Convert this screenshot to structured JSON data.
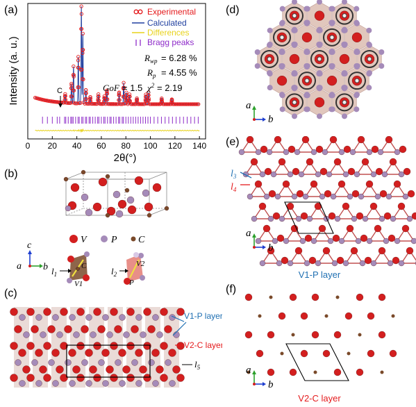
{
  "panels": {
    "a": "(a)",
    "b": "(b)",
    "c": "(c)",
    "d": "(d)",
    "e": "(e)",
    "f": "(f)"
  },
  "chart_data": {
    "type": "scatter",
    "xlabel": "2θ(°)",
    "ylabel": "Intensity (a. u.)",
    "xlim": [
      0,
      145
    ],
    "xticks": [
      0,
      20,
      40,
      60,
      80,
      100,
      120,
      140
    ],
    "legend": [
      {
        "name": "Experimental",
        "color": "#e41a1c",
        "marker": "open-circle"
      },
      {
        "name": "Calculated",
        "color": "#1f3f9f",
        "marker": "line"
      },
      {
        "name": "Differences",
        "color": "#e8d21a",
        "marker": "line"
      },
      {
        "name": "Bragg peaks",
        "color": "#8e2cc9",
        "marker": "tick"
      }
    ],
    "legend_position": "top-right",
    "annotation": "C",
    "peaks": [
      {
        "x": 30.5,
        "h": 0.09
      },
      {
        "x": 35.6,
        "h": 0.2
      },
      {
        "x": 37.3,
        "h": 0.38
      },
      {
        "x": 41.2,
        "h": 0.48
      },
      {
        "x": 43.7,
        "h": 1.0
      },
      {
        "x": 44.9,
        "h": 0.72
      },
      {
        "x": 47.4,
        "h": 0.14
      },
      {
        "x": 51.0,
        "h": 0.07
      },
      {
        "x": 57.6,
        "h": 0.1
      },
      {
        "x": 62.5,
        "h": 0.08
      },
      {
        "x": 64.6,
        "h": 0.14
      },
      {
        "x": 74.5,
        "h": 0.12
      },
      {
        "x": 78.2,
        "h": 0.22
      },
      {
        "x": 80.4,
        "h": 0.12
      },
      {
        "x": 83.0,
        "h": 0.1
      },
      {
        "x": 89.0,
        "h": 0.06
      },
      {
        "x": 96.3,
        "h": 0.1
      },
      {
        "x": 98.4,
        "h": 0.12
      },
      {
        "x": 109.2,
        "h": 0.06
      },
      {
        "x": 117.5,
        "h": 0.05
      }
    ],
    "bragg_positions": [
      12,
      16,
      20,
      24,
      26,
      30,
      31,
      33,
      35,
      36,
      37,
      39,
      41,
      42,
      44,
      45,
      47,
      48,
      50,
      51,
      53,
      55,
      57,
      58,
      60,
      62,
      63,
      65,
      67,
      68,
      70,
      72,
      74,
      75,
      77,
      78,
      80,
      82,
      84,
      86,
      88,
      90,
      92,
      94,
      96,
      98,
      100,
      103,
      106,
      109,
      112,
      115,
      118,
      121,
      124,
      127,
      130,
      133,
      136,
      139
    ]
  },
  "fit_stats": {
    "rwp": "= 6.28 %",
    "rp": "= 4.55 %",
    "gof": "= 1.5",
    "chi2": "= 2.19"
  },
  "legend_b": {
    "v": "V",
    "p": "P",
    "c": "C"
  },
  "axes_b": {
    "c": "c",
    "a": "a",
    "b": "b"
  },
  "labels_b": {
    "l1": "l",
    "l1_sub": "1",
    "l2": "l",
    "l2_sub": "2",
    "v1": "V1",
    "v2": "V2",
    "c": "C",
    "p": "P"
  },
  "labels_c": {
    "v1p": "V1-P layer",
    "v2c": "V2-C layer",
    "l5": "l",
    "l5_sub": "5"
  },
  "labels_e": {
    "l3": "l",
    "l3_sub": "3",
    "l4": "l",
    "l4_sub": "4",
    "layer": "V1-P layer"
  },
  "labels_f": {
    "layer": "V2-C layer"
  },
  "axes_def": {
    "a": "a",
    "b": "b"
  },
  "colors": {
    "v": "#d31f1f",
    "p": "#a58bb9",
    "c": "#7a4a2a",
    "red_label": "#e41a1c",
    "blue_label": "#1f6fb2"
  }
}
